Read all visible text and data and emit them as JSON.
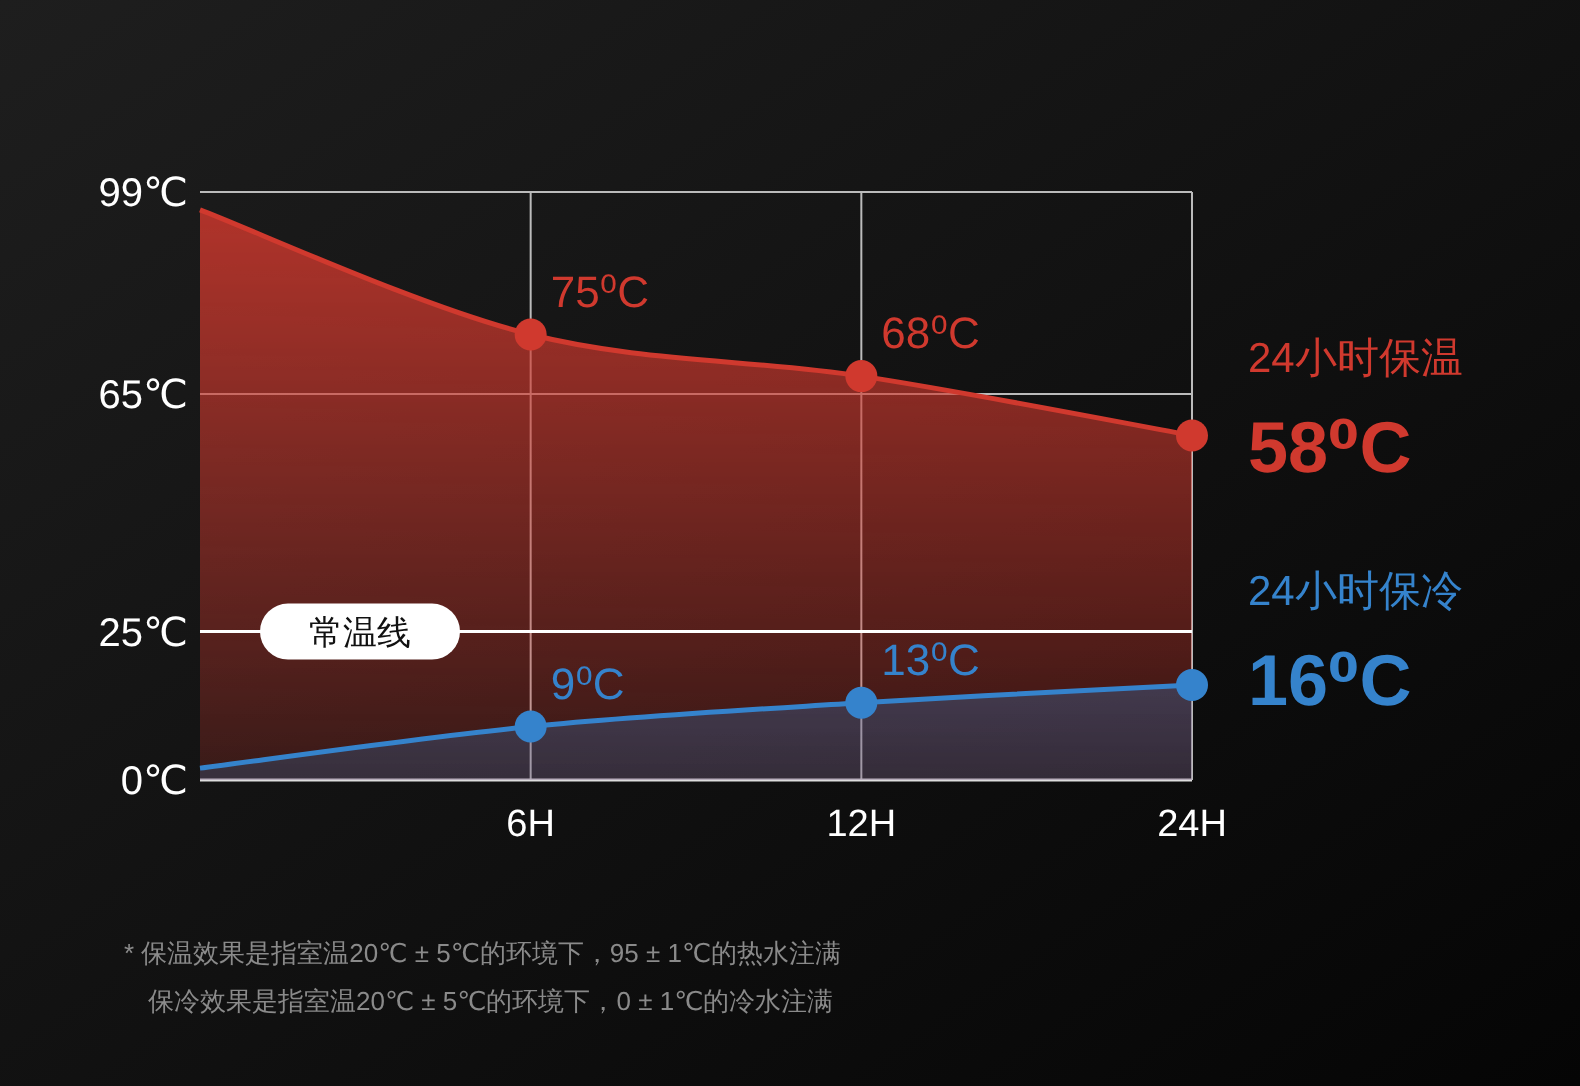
{
  "chart_data": {
    "type": "area",
    "categories": [
      null,
      "6H",
      "12H",
      "24H"
    ],
    "series": [
      {
        "name": "24小时保温",
        "color": "#d0392e",
        "values": [
          96,
          75,
          68,
          58
        ],
        "value_labels": [
          null,
          "75⁰C",
          "68⁰C",
          "58⁰C"
        ]
      },
      {
        "name": "24小时保冷",
        "color": "#3583cc",
        "values": [
          2,
          9,
          13,
          16
        ],
        "value_labels": [
          null,
          "9⁰C",
          "13⁰C",
          "16⁰C"
        ]
      }
    ],
    "ylim": [
      0,
      99
    ],
    "yticks": [
      {
        "value": 0,
        "label": "0℃"
      },
      {
        "value": 25,
        "label": "25℃"
      },
      {
        "value": 65,
        "label": "65℃"
      },
      {
        "value": 99,
        "label": "99℃"
      }
    ],
    "grid": true,
    "marker": "circle",
    "ref_lines": [
      {
        "axis": "y",
        "value": 25,
        "label": "常温线",
        "color": "#ffffff"
      }
    ],
    "annotations": [
      "* 保温效果是指室温20℃ ± 5℃的环境下，95 ± 1℃的热水注满",
      "保冷效果是指室温20℃ ± 5℃的环境下，0 ± 1℃的冷水注满"
    ]
  }
}
